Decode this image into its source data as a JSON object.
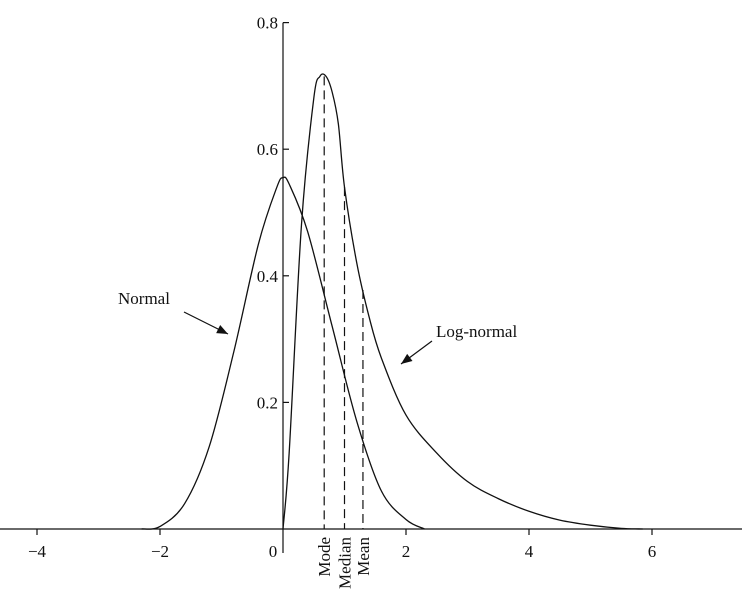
{
  "chart_data": {
    "type": "line",
    "title": "",
    "xlabel": "",
    "ylabel": "",
    "xlim": [
      -4,
      7.5
    ],
    "ylim": [
      0,
      0.8
    ],
    "x_ticks": [
      {
        "value": -4,
        "label": "−4"
      },
      {
        "value": -2,
        "label": "−2"
      },
      {
        "value": 0,
        "label": "0"
      },
      {
        "value": 2,
        "label": "2"
      },
      {
        "value": 4,
        "label": "4"
      },
      {
        "value": 6,
        "label": "6"
      }
    ],
    "y_ticks": [
      {
        "value": 0.2,
        "label": "0.2"
      },
      {
        "value": 0.4,
        "label": "0.4"
      },
      {
        "value": 0.6,
        "label": "0.6"
      },
      {
        "value": 0.8,
        "label": "0.8"
      }
    ],
    "series": [
      {
        "name": "Normal",
        "points": [
          [
            -2.3,
            0.0
          ],
          [
            -2.0,
            0.004
          ],
          [
            -1.6,
            0.04
          ],
          [
            -1.2,
            0.13
          ],
          [
            -0.8,
            0.28
          ],
          [
            -0.4,
            0.45
          ],
          [
            -0.1,
            0.54
          ],
          [
            0.0,
            0.555
          ],
          [
            0.1,
            0.545
          ],
          [
            0.4,
            0.47
          ],
          [
            0.8,
            0.32
          ],
          [
            1.2,
            0.17
          ],
          [
            1.6,
            0.06
          ],
          [
            2.0,
            0.015
          ],
          [
            2.3,
            0.0
          ]
        ]
      },
      {
        "name": "Log-normal",
        "points": [
          [
            0.0,
            0.0
          ],
          [
            0.1,
            0.12
          ],
          [
            0.3,
            0.48
          ],
          [
            0.5,
            0.68
          ],
          [
            0.6,
            0.715
          ],
          [
            0.7,
            0.715
          ],
          [
            0.8,
            0.69
          ],
          [
            0.9,
            0.64
          ],
          [
            1.0,
            0.54
          ],
          [
            1.2,
            0.42
          ],
          [
            1.4,
            0.335
          ],
          [
            1.6,
            0.27
          ],
          [
            2.0,
            0.18
          ],
          [
            2.5,
            0.12
          ],
          [
            3.0,
            0.075
          ],
          [
            3.5,
            0.048
          ],
          [
            4.0,
            0.028
          ],
          [
            4.5,
            0.014
          ],
          [
            5.0,
            0.006
          ],
          [
            5.5,
            0.001
          ],
          [
            5.85,
            0.0
          ]
        ]
      }
    ],
    "markers": [
      {
        "label": "Mode",
        "x": 0.67
      },
      {
        "label": "Median",
        "x": 1.0
      },
      {
        "label": "Mean",
        "x": 1.3
      }
    ],
    "annotations": [
      {
        "text": "Normal",
        "series": "Normal"
      },
      {
        "text": "Log-normal",
        "series": "Log-normal"
      }
    ],
    "grid": false,
    "legend": "none"
  }
}
